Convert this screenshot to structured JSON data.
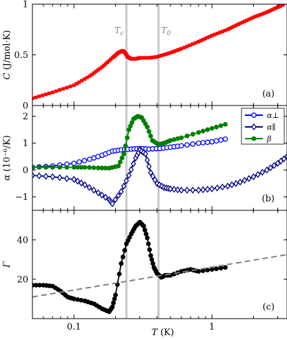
{
  "chart_data": {
    "type": "line",
    "x_scale": "log",
    "x_range": [
      0.05,
      3.5
    ],
    "xlabel": "T (K)",
    "x_ticks": [
      "0.1",
      "1"
    ],
    "vertical_lines": [
      {
        "label": "T_c",
        "x": 0.24
      },
      {
        "label": "T_0",
        "x": 0.41
      }
    ],
    "panels": [
      {
        "id": "a",
        "tag": "(a)",
        "ylabel": "C (J/mol·K)",
        "ylim": [
          0,
          1
        ],
        "y_ticks": [
          "0",
          "0.5",
          "1"
        ],
        "series": [
          {
            "name": "",
            "color": "#ff0000",
            "marker": "square",
            "x": [
              0.05,
              0.07,
              0.1,
              0.13,
              0.16,
              0.19,
              0.21,
              0.225,
              0.235,
              0.245,
              0.26,
              0.28,
              0.3,
              0.35,
              0.4,
              0.5,
              0.6,
              0.8,
              1.0,
              1.3,
              1.6,
              2.0,
              2.5,
              3.0,
              3.3
            ],
            "y": [
              0.07,
              0.13,
              0.2,
              0.29,
              0.38,
              0.47,
              0.52,
              0.54,
              0.52,
              0.48,
              0.46,
              0.46,
              0.47,
              0.47,
              0.48,
              0.52,
              0.56,
              0.63,
              0.69,
              0.75,
              0.81,
              0.87,
              0.92,
              0.97,
              1.0
            ]
          }
        ]
      },
      {
        "id": "b",
        "tag": "(b)",
        "ylabel": "α (10⁻⁶/K)",
        "ylim": [
          -1.5,
          2.4
        ],
        "y_ticks": [
          "−1",
          "0",
          "1",
          "2"
        ],
        "legend": {
          "placement": "top-right"
        },
        "series": [
          {
            "name": "α⊥",
            "color": "#0000ff",
            "marker": "open-circle",
            "x": [
              0.05,
              0.07,
              0.1,
              0.13,
              0.16,
              0.19,
              0.22,
              0.26,
              0.3,
              0.35,
              0.42,
              0.5,
              0.6,
              0.8,
              1.0,
              1.25
            ],
            "y": [
              0.1,
              0.15,
              0.25,
              0.4,
              0.55,
              0.7,
              0.75,
              0.78,
              0.8,
              0.78,
              0.8,
              0.85,
              0.9,
              1.0,
              1.05,
              1.15
            ]
          },
          {
            "name": "α∥",
            "color": "#00008b",
            "marker": "diamond",
            "x": [
              0.05,
              0.07,
              0.1,
              0.12,
              0.15,
              0.18,
              0.19,
              0.22,
              0.25,
              0.28,
              0.3,
              0.33,
              0.36,
              0.4,
              0.45,
              0.5,
              0.6,
              0.8,
              1.0,
              1.3,
              1.6,
              2.0,
              2.5,
              3.0,
              3.5
            ],
            "y": [
              -0.2,
              -0.25,
              -0.35,
              -0.55,
              -0.85,
              -1.1,
              -1.25,
              -0.8,
              -0.2,
              0.45,
              0.75,
              0.6,
              -0.1,
              -0.5,
              -0.65,
              -0.7,
              -0.75,
              -0.75,
              -0.7,
              -0.6,
              -0.45,
              -0.25,
              0.0,
              0.25,
              0.5
            ]
          },
          {
            "name": "β",
            "color": "#008000",
            "marker": "filled-circle",
            "x": [
              0.05,
              0.07,
              0.1,
              0.12,
              0.15,
              0.18,
              0.21,
              0.23,
              0.25,
              0.27,
              0.29,
              0.31,
              0.34,
              0.37,
              0.41,
              0.45,
              0.5,
              0.6,
              0.8,
              1.0,
              1.25
            ],
            "y": [
              0.1,
              0.1,
              0.1,
              0.1,
              0.08,
              0.07,
              0.15,
              0.6,
              1.5,
              1.9,
              2.0,
              1.95,
              1.6,
              1.1,
              0.95,
              1.0,
              1.1,
              1.2,
              1.4,
              1.55,
              1.7
            ]
          }
        ]
      },
      {
        "id": "c",
        "tag": "(c)",
        "ylabel": "Γ",
        "ylim": [
          0,
          55
        ],
        "y_ticks": [
          "20",
          "40"
        ],
        "series": [
          {
            "name": "",
            "color": "#000000",
            "marker": "filled-circle",
            "x": [
              0.05,
              0.06,
              0.07,
              0.08,
              0.09,
              0.1,
              0.12,
              0.14,
              0.16,
              0.18,
              0.19,
              0.2,
              0.22,
              0.24,
              0.26,
              0.28,
              0.3,
              0.32,
              0.34,
              0.36,
              0.38,
              0.4,
              0.43,
              0.46,
              0.5,
              0.6,
              0.7,
              0.8,
              1.0,
              1.25
            ],
            "y": [
              17,
              17,
              16.5,
              14,
              11,
              10,
              9,
              7.5,
              5,
              3.5,
              6,
              12,
              28,
              38,
              43,
              47,
              49,
              47,
              41,
              32,
              26,
              23,
              21,
              22,
              22,
              24,
              25,
              24,
              25,
              26
            ]
          },
          {
            "name": "",
            "color": "#808080",
            "style": "dashed",
            "x": [
              0.05,
              3.5
            ],
            "y": [
              11,
              32.5
            ]
          }
        ]
      }
    ]
  }
}
